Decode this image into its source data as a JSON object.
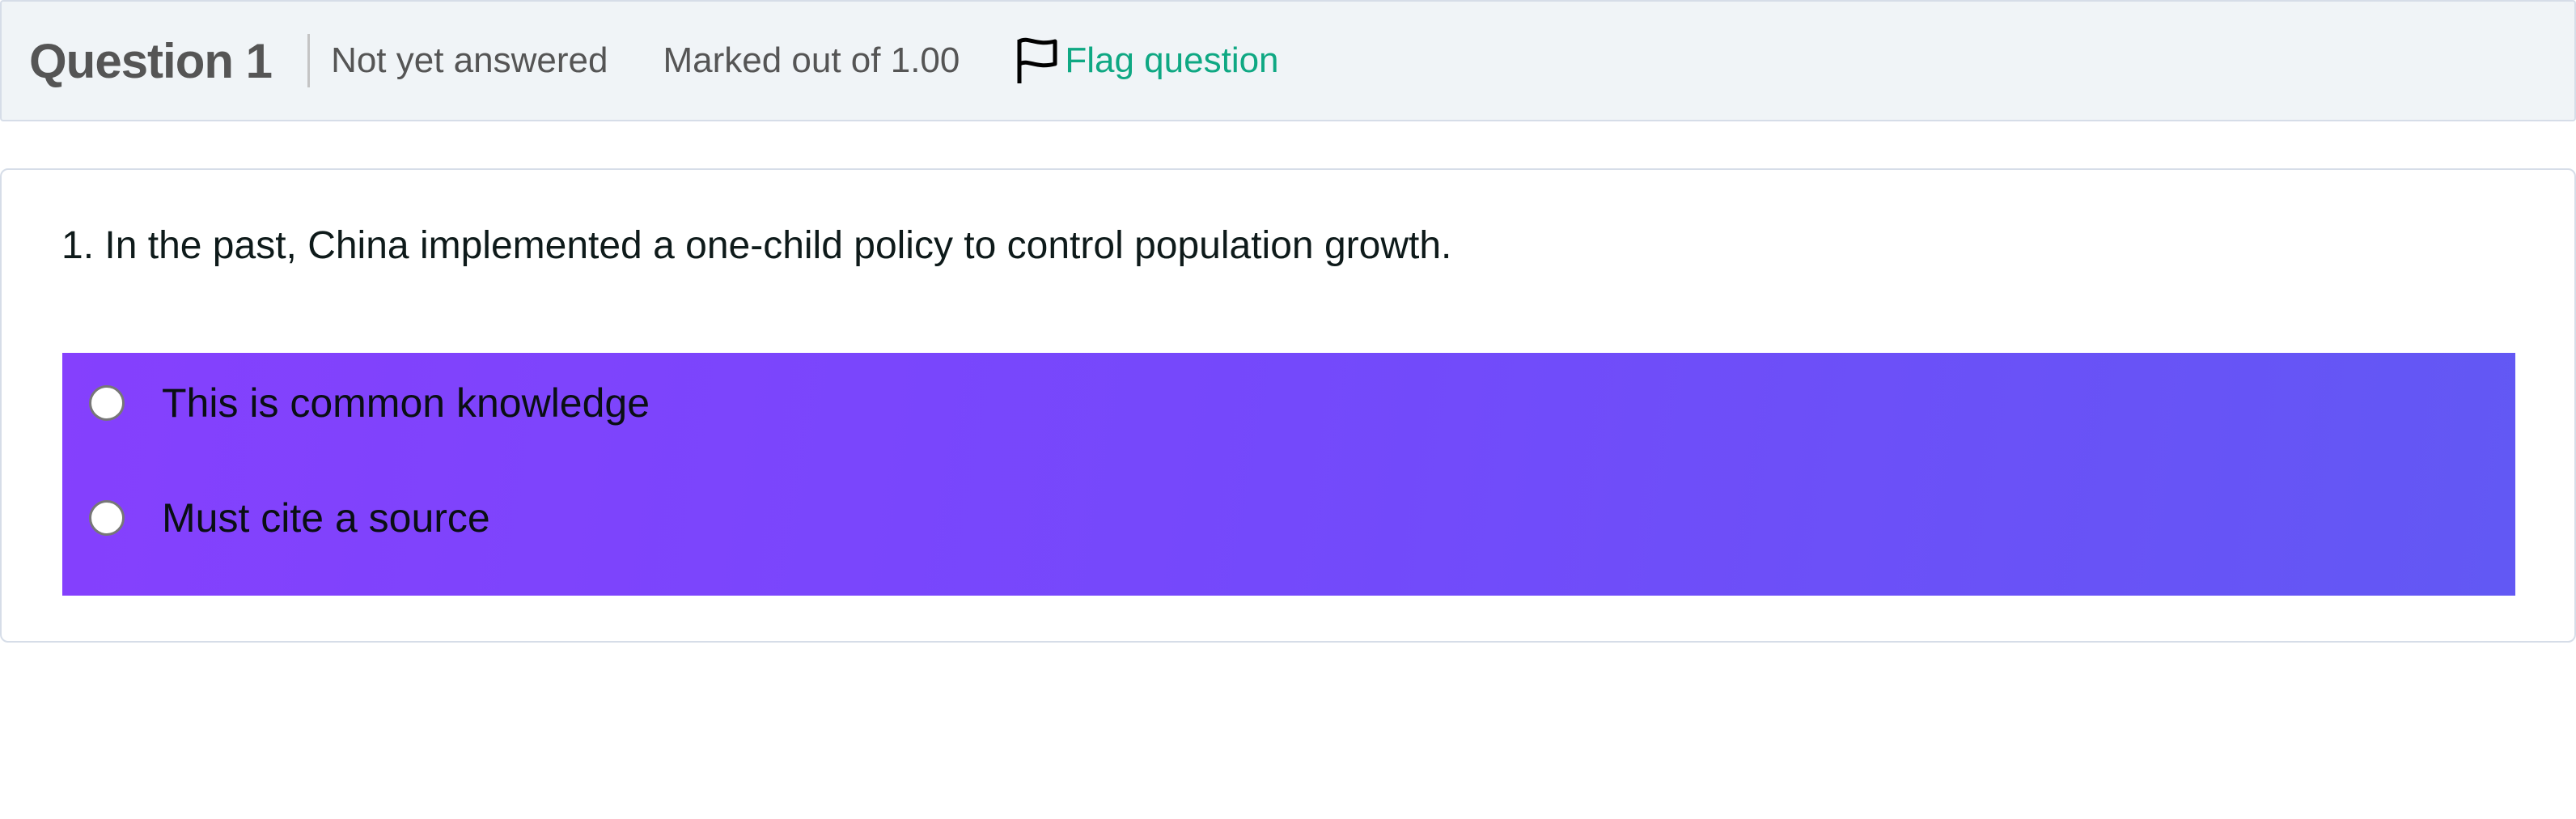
{
  "header": {
    "title": "Question 1",
    "status": "Not yet answered",
    "marks": "Marked out of 1.00",
    "flag_label": "Flag question",
    "flag_icon": "flag-outline-icon"
  },
  "question": {
    "text": "1. In the past, China implemented a one-child policy to control population growth.",
    "options": [
      {
        "label": "This is common knowledge",
        "selected": false
      },
      {
        "label": "Must cite a source",
        "selected": false
      }
    ]
  },
  "colors": {
    "accent_link": "#0fa883",
    "answer_gradient_start": "#8540fd",
    "answer_gradient_end": "#6258f4",
    "header_bg": "#f0f4f7"
  }
}
